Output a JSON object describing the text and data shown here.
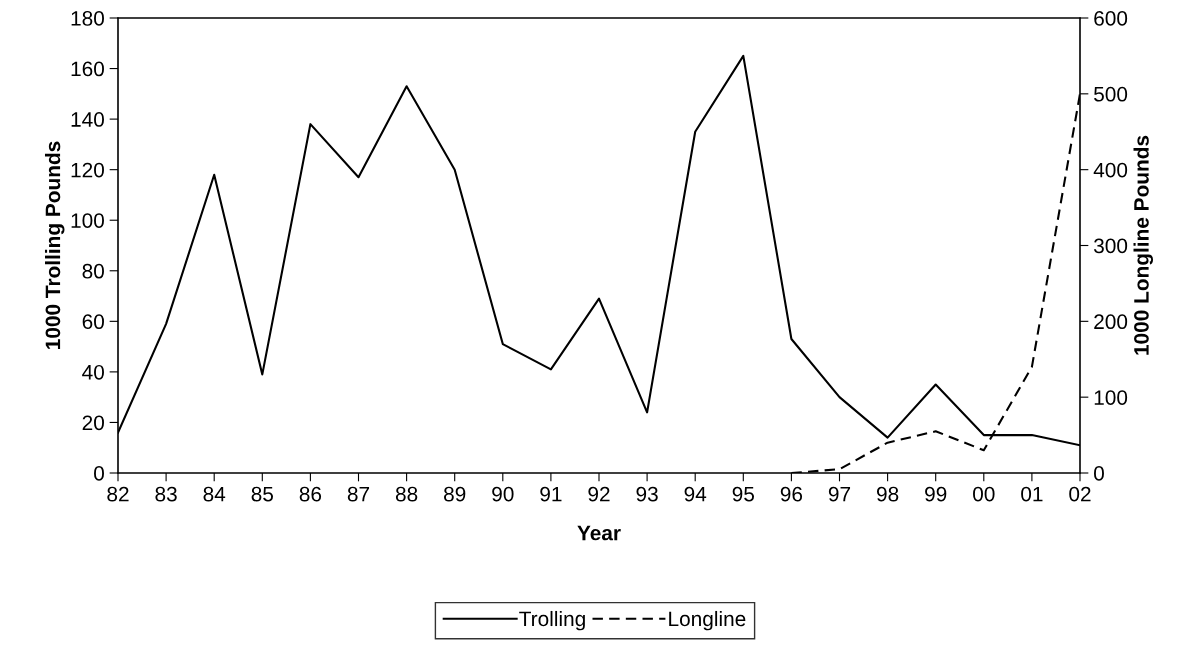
{
  "chart_data": {
    "type": "line",
    "xlabel": "Year",
    "ylabel": "1000 Trolling Pounds",
    "y2label": "1000 Longline Pounds",
    "categories": [
      "82",
      "83",
      "84",
      "85",
      "86",
      "87",
      "88",
      "89",
      "90",
      "91",
      "92",
      "93",
      "94",
      "95",
      "96",
      "97",
      "98",
      "99",
      "00",
      "01",
      "02"
    ],
    "series": [
      {
        "name": "Trolling",
        "color": "#000000",
        "line_style": "solid",
        "values": [
          16,
          59,
          118,
          39,
          138,
          117,
          153,
          120,
          51,
          41,
          69,
          24,
          135,
          165,
          53,
          30,
          14,
          35,
          15,
          15,
          11
        ]
      },
      {
        "name": "Longline",
        "color": "#000000",
        "line_style": "dashed",
        "axis": "y2",
        "values": [
          null,
          null,
          null,
          null,
          null,
          null,
          null,
          null,
          null,
          null,
          null,
          null,
          null,
          null,
          0,
          5,
          40,
          55,
          30,
          140,
          500
        ]
      }
    ],
    "ylim": [
      0,
      180
    ],
    "yticks": [
      0,
      20,
      40,
      60,
      80,
      100,
      120,
      140,
      160,
      180
    ],
    "y2lim": [
      0,
      600
    ],
    "y2ticks": [
      0,
      100,
      200,
      300,
      400,
      500,
      600
    ],
    "grid": false,
    "legend": "bottom",
    "marker": "none"
  }
}
